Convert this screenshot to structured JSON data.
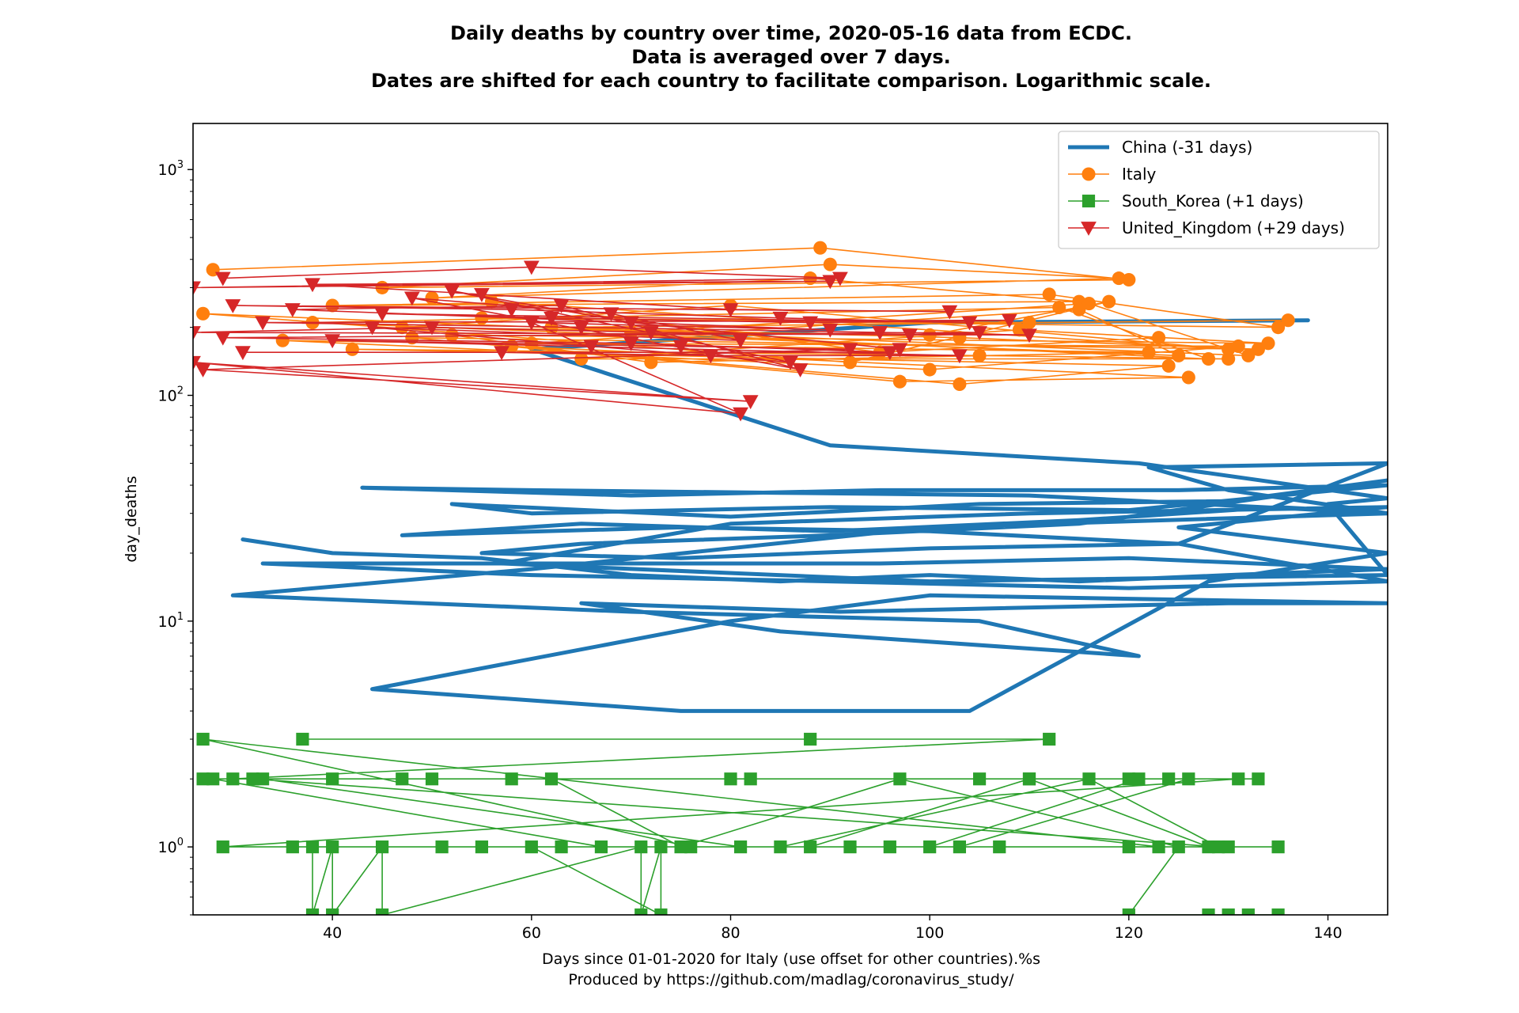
{
  "chart_data": {
    "type": "line",
    "title": "Daily deaths by country over time, 2020-05-16 data from ECDC.",
    "subtitle_lines": [
      "Data is averaged over 7 days.",
      "Dates are shifted for each country to facilitate comparison. Logarithmic scale."
    ],
    "xlabel": "Days since 01-01-2020 for Italy (use offset for other countries).%s",
    "xlabel_line2": "Produced by https://github.com/madlag/coronavirus_study/",
    "ylabel": "day_deaths",
    "xlim": [
      26,
      146
    ],
    "ylim": [
      0.5,
      1600
    ],
    "yscale": "log",
    "grid": false,
    "legend_position": "top-right",
    "x_ticks": [
      40,
      60,
      80,
      100,
      120,
      140
    ],
    "y_ticks": [
      {
        "value": 1,
        "base": "10",
        "exp": "0"
      },
      {
        "value": 10,
        "base": "10",
        "exp": "1"
      },
      {
        "value": 100,
        "base": "10",
        "exp": "2"
      },
      {
        "value": 1000,
        "base": "10",
        "exp": "3"
      }
    ],
    "series": [
      {
        "name": "China (-31 days)",
        "color": "#1f77b4",
        "style": "thick",
        "marker": "none",
        "points": [
          [
            31,
            23
          ],
          [
            40,
            20
          ],
          [
            55,
            19
          ],
          [
            70,
            16
          ],
          [
            85,
            15
          ],
          [
            100,
            16
          ],
          [
            115,
            15
          ],
          [
            130,
            16
          ],
          [
            146,
            17
          ],
          [
            120,
            19
          ],
          [
            95,
            18
          ],
          [
            70,
            18
          ],
          [
            45,
            18
          ],
          [
            33,
            18
          ],
          [
            60,
            16
          ],
          [
            90,
            15
          ],
          [
            120,
            14
          ],
          [
            146,
            15
          ],
          [
            125,
            22
          ],
          [
            100,
            25
          ],
          [
            75,
            26
          ],
          [
            47,
            24
          ],
          [
            65,
            27
          ],
          [
            90,
            25
          ],
          [
            115,
            28
          ],
          [
            135,
            32
          ],
          [
            146,
            30
          ],
          [
            110,
            36
          ],
          [
            85,
            37
          ],
          [
            60,
            38
          ],
          [
            43,
            39
          ],
          [
            70,
            36
          ],
          [
            95,
            38
          ],
          [
            125,
            38
          ],
          [
            146,
            40
          ],
          [
            120,
            31
          ],
          [
            90,
            32
          ],
          [
            60,
            30
          ],
          [
            52,
            33
          ],
          [
            80,
            29
          ],
          [
            105,
            33
          ],
          [
            130,
            34
          ],
          [
            146,
            42
          ],
          [
            115,
            27
          ],
          [
            90,
            24
          ],
          [
            65,
            22
          ],
          [
            55,
            20
          ],
          [
            75,
            19
          ],
          [
            100,
            21
          ],
          [
            125,
            22
          ],
          [
            146,
            50
          ],
          [
            122,
            48
          ],
          [
            130,
            38
          ],
          [
            146,
            30
          ],
          [
            100,
            26
          ],
          [
            60,
            17
          ],
          [
            30,
            13
          ],
          [
            70,
            11
          ],
          [
            105,
            10
          ],
          [
            121,
            7
          ],
          [
            85,
            9
          ],
          [
            65,
            12
          ],
          [
            91,
            11
          ],
          [
            130,
            12
          ],
          [
            146,
            12
          ],
          [
            100,
            13
          ],
          [
            80,
            10
          ],
          [
            44,
            5
          ],
          [
            75,
            4
          ],
          [
            104,
            4
          ],
          [
            128,
            15
          ],
          [
            146,
            20
          ],
          [
            125,
            26
          ],
          [
            146,
            32
          ],
          [
            110,
            30
          ],
          [
            80,
            27
          ],
          [
            57,
            18
          ],
          [
            100,
            15
          ],
          [
            146,
            16
          ],
          [
            140,
            33
          ],
          [
            146,
            35
          ],
          [
            121,
            50
          ],
          [
            90,
            60
          ],
          [
            60,
            160
          ],
          [
            100,
            210
          ],
          [
            138,
            215
          ]
        ]
      },
      {
        "name": "Italy",
        "color": "#ff7f0e",
        "style": "thin",
        "marker": "circle",
        "points": [
          [
            28,
            360
          ],
          [
            89,
            450
          ],
          [
            120,
            325
          ],
          [
            45,
            300
          ],
          [
            90,
            380
          ],
          [
            119,
            330
          ],
          [
            50,
            270
          ],
          [
            88,
            330
          ],
          [
            115,
            260
          ],
          [
            40,
            250
          ],
          [
            112,
            280
          ],
          [
            135,
            200
          ],
          [
            55,
            220
          ],
          [
            110,
            210
          ],
          [
            136,
            215
          ],
          [
            62,
            200
          ],
          [
            103,
            180
          ],
          [
            133,
            160
          ],
          [
            48,
            180
          ],
          [
            97,
            115
          ],
          [
            126,
            120
          ],
          [
            58,
            165
          ],
          [
            103,
            112
          ],
          [
            124,
            135
          ],
          [
            42,
            160
          ],
          [
            105,
            150
          ],
          [
            130,
            145
          ],
          [
            65,
            145
          ],
          [
            109,
            195
          ],
          [
            134,
            170
          ],
          [
            52,
            185
          ],
          [
            72,
            140
          ],
          [
            122,
            155
          ],
          [
            35,
            175
          ],
          [
            100,
            130
          ],
          [
            131,
            165
          ],
          [
            60,
            170
          ],
          [
            115,
            240
          ],
          [
            125,
            150
          ],
          [
            38,
            210
          ],
          [
            113,
            245
          ],
          [
            128,
            145
          ],
          [
            70,
            190
          ],
          [
            116,
            255
          ],
          [
            132,
            150
          ],
          [
            27,
            230
          ],
          [
            92,
            140
          ],
          [
            118,
            260
          ],
          [
            100,
            185
          ],
          [
            47,
            200
          ],
          [
            80,
            250
          ],
          [
            130,
            160
          ],
          [
            56,
            260
          ],
          [
            95,
            155
          ],
          [
            123,
            180
          ]
        ]
      },
      {
        "name": "South_Korea (+1 days)",
        "color": "#2ca02c",
        "style": "thin",
        "marker": "square",
        "points": [
          [
            37,
            3
          ],
          [
            88,
            3
          ],
          [
            112,
            3
          ],
          [
            30,
            2
          ],
          [
            50,
            2
          ],
          [
            80,
            2
          ],
          [
            105,
            2
          ],
          [
            120,
            2
          ],
          [
            133,
            2
          ],
          [
            27,
            2
          ],
          [
            40,
            2
          ],
          [
            58,
            2
          ],
          [
            82,
            2
          ],
          [
            110,
            2
          ],
          [
            124,
            2
          ],
          [
            131,
            2
          ],
          [
            29,
            1
          ],
          [
            63,
            1
          ],
          [
            96,
            1
          ],
          [
            120,
            1
          ],
          [
            135,
            1
          ],
          [
            36,
            1
          ],
          [
            55,
            1
          ],
          [
            88,
            1
          ],
          [
            110,
            2
          ],
          [
            128,
            1
          ],
          [
            38,
            1
          ],
          [
            38,
            0.5
          ],
          [
            40,
            1
          ],
          [
            40,
            0.5
          ],
          [
            45,
            1
          ],
          [
            45,
            0.5
          ],
          [
            71,
            1
          ],
          [
            71,
            0.5
          ],
          [
            73,
            1
          ],
          [
            73,
            0.5
          ],
          [
            60,
            1
          ],
          [
            92,
            1
          ],
          [
            123,
            1
          ],
          [
            27,
            3
          ],
          [
            76,
            1
          ],
          [
            100,
            1
          ],
          [
            121,
            2
          ],
          [
            28,
            2
          ],
          [
            67,
            1
          ],
          [
            103,
            1
          ],
          [
            126,
            2
          ],
          [
            33,
            2
          ],
          [
            81,
            1
          ],
          [
            107,
            1
          ],
          [
            130,
            1
          ],
          [
            51,
            1
          ],
          [
            85,
            1
          ],
          [
            116,
            2
          ],
          [
            129,
            1
          ],
          [
            32,
            2
          ],
          [
            47,
            2
          ],
          [
            62,
            2
          ],
          [
            75,
            1
          ],
          [
            97,
            2
          ],
          [
            125,
            1
          ],
          [
            120,
            0.5
          ],
          [
            128,
            0.5
          ],
          [
            130,
            0.5
          ],
          [
            132,
            0.5
          ],
          [
            135,
            0.5
          ]
        ]
      },
      {
        "name": "United_Kingdom (+29 days)",
        "color": "#d62728",
        "style": "thin",
        "marker": "triangle-down",
        "points": [
          [
            29,
            330
          ],
          [
            60,
            370
          ],
          [
            91,
            330
          ],
          [
            26,
            300
          ],
          [
            90,
            320
          ],
          [
            38,
            310
          ],
          [
            55,
            280
          ],
          [
            80,
            240
          ],
          [
            102,
            235
          ],
          [
            30,
            250
          ],
          [
            58,
            240
          ],
          [
            85,
            220
          ],
          [
            104,
            210
          ],
          [
            45,
            230
          ],
          [
            62,
            220
          ],
          [
            88,
            210
          ],
          [
            108,
            215
          ],
          [
            33,
            210
          ],
          [
            65,
            200
          ],
          [
            95,
            190
          ],
          [
            110,
            185
          ],
          [
            26,
            190
          ],
          [
            50,
            200
          ],
          [
            72,
            190
          ],
          [
            98,
            185
          ],
          [
            105,
            190
          ],
          [
            29,
            180
          ],
          [
            70,
            170
          ],
          [
            96,
            155
          ],
          [
            31,
            155
          ],
          [
            57,
            155
          ],
          [
            78,
            150
          ],
          [
            103,
            150
          ],
          [
            40,
            175
          ],
          [
            75,
            165
          ],
          [
            92,
            160
          ],
          [
            27,
            130
          ],
          [
            82,
            94
          ],
          [
            26,
            140
          ],
          [
            81,
            83
          ],
          [
            60,
            210
          ],
          [
            90,
            195
          ],
          [
            36,
            240
          ],
          [
            63,
            250
          ],
          [
            87,
            130
          ],
          [
            48,
            270
          ],
          [
            68,
            230
          ],
          [
            81,
            175
          ],
          [
            44,
            200
          ],
          [
            66,
            165
          ],
          [
            86,
            140
          ],
          [
            52,
            290
          ],
          [
            70,
            210
          ],
          [
            97,
            160
          ]
        ]
      }
    ]
  }
}
